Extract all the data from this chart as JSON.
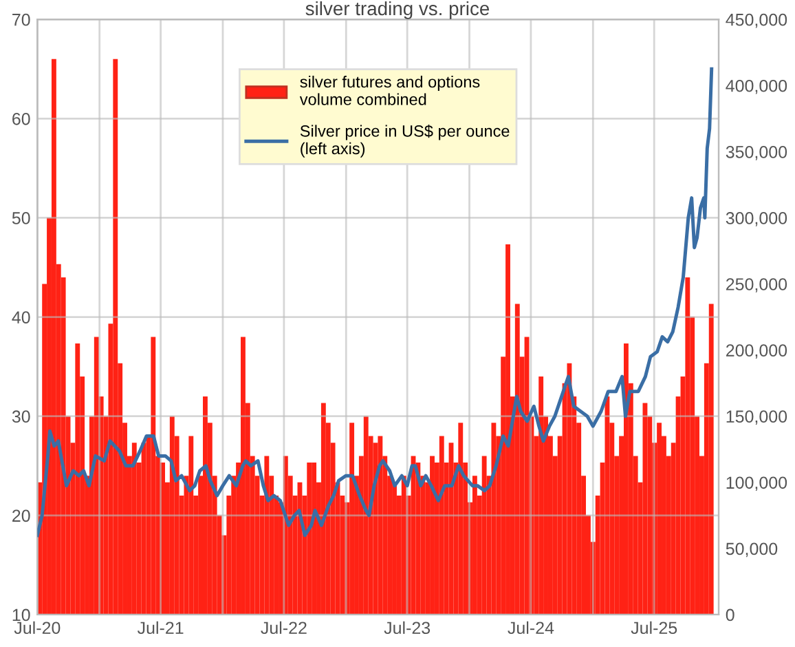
{
  "chart_data": {
    "type": "bar",
    "title": "silver trading vs. price",
    "xlim": [
      "2020-07-01",
      "2026-01-08"
    ],
    "xticks": [
      {
        "value": "2020-07-01",
        "label": "Jul-20"
      },
      {
        "value": "2021-01-01",
        "label": null
      },
      {
        "value": "2021-07-01",
        "label": "Jul-21"
      },
      {
        "value": "2022-01-01",
        "label": null
      },
      {
        "value": "2022-07-01",
        "label": "Jul-22"
      },
      {
        "value": "2023-01-01",
        "label": null
      },
      {
        "value": "2023-07-01",
        "label": "Jul-23"
      },
      {
        "value": "2024-01-01",
        "label": null
      },
      {
        "value": "2024-07-01",
        "label": "Jul-24"
      },
      {
        "value": "2025-01-01",
        "label": null
      },
      {
        "value": "2025-07-01",
        "label": "Jul-25"
      }
    ],
    "ylim": [
      10,
      70
    ],
    "yticks": [
      10,
      20,
      30,
      40,
      50,
      60,
      70
    ],
    "y2lim": [
      0,
      450000
    ],
    "y2ticks": [
      {
        "value": 0,
        "label": "0"
      },
      {
        "value": 50000,
        "label": "50,000"
      },
      {
        "value": 100000,
        "label": "100,000"
      },
      {
        "value": 150000,
        "label": "150,000"
      },
      {
        "value": 200000,
        "label": "200,000"
      },
      {
        "value": 250000,
        "label": "250,000"
      },
      {
        "value": 300000,
        "label": "300,000"
      },
      {
        "value": 350000,
        "label": "350,000"
      },
      {
        "value": 400000,
        "label": "400,000"
      },
      {
        "value": 450000,
        "label": "450,000"
      }
    ],
    "grid": true,
    "legend": "top",
    "series": [
      {
        "name": "silver futures and options volume combined",
        "axis": "y2",
        "color": "#ff2215",
        "x": [
          "2020-07-01",
          "2020-07-15",
          "2020-07-29",
          "2020-08-12",
          "2020-08-26",
          "2020-09-09",
          "2020-09-23",
          "2020-10-07",
          "2020-10-21",
          "2020-11-04",
          "2020-11-18",
          "2020-12-02",
          "2020-12-16",
          "2020-12-30",
          "2021-01-13",
          "2021-01-27",
          "2021-02-10",
          "2021-02-24",
          "2021-03-10",
          "2021-03-24",
          "2021-04-07",
          "2021-04-21",
          "2021-05-05",
          "2021-05-19",
          "2021-06-02",
          "2021-06-16",
          "2021-06-30",
          "2021-07-14",
          "2021-07-28",
          "2021-08-11",
          "2021-08-25",
          "2021-09-08",
          "2021-09-22",
          "2021-10-06",
          "2021-10-20",
          "2021-11-03",
          "2021-11-17",
          "2021-12-01",
          "2021-12-15",
          "2021-12-29",
          "2022-01-12",
          "2022-01-26",
          "2022-02-09",
          "2022-02-23",
          "2022-03-09",
          "2022-03-23",
          "2022-04-06",
          "2022-04-20",
          "2022-05-04",
          "2022-05-18",
          "2022-06-01",
          "2022-06-15",
          "2022-06-29",
          "2022-07-13",
          "2022-07-27",
          "2022-08-10",
          "2022-08-24",
          "2022-09-07",
          "2022-09-21",
          "2022-10-05",
          "2022-10-19",
          "2022-11-02",
          "2022-11-16",
          "2022-11-30",
          "2022-12-14",
          "2022-12-28",
          "2023-01-11",
          "2023-01-25",
          "2023-02-08",
          "2023-02-22",
          "2023-03-08",
          "2023-03-22",
          "2023-04-05",
          "2023-04-19",
          "2023-05-03",
          "2023-05-17",
          "2023-05-31",
          "2023-06-14",
          "2023-06-28",
          "2023-07-12",
          "2023-07-26",
          "2023-08-09",
          "2023-08-23",
          "2023-09-06",
          "2023-09-20",
          "2023-10-04",
          "2023-10-18",
          "2023-11-01",
          "2023-11-15",
          "2023-11-29",
          "2023-12-13",
          "2023-12-27",
          "2024-01-10",
          "2024-01-24",
          "2024-02-07",
          "2024-02-21",
          "2024-03-06",
          "2024-03-20",
          "2024-04-03",
          "2024-04-17",
          "2024-05-01",
          "2024-05-15",
          "2024-05-29",
          "2024-06-12",
          "2024-06-26",
          "2024-07-10",
          "2024-07-24",
          "2024-08-07",
          "2024-08-21",
          "2024-09-04",
          "2024-09-18",
          "2024-10-02",
          "2024-10-16",
          "2024-10-30",
          "2024-11-13",
          "2024-11-27",
          "2024-12-11",
          "2024-12-25",
          "2025-01-08",
          "2025-01-22",
          "2025-02-05",
          "2025-02-19",
          "2025-03-05",
          "2025-03-19",
          "2025-04-02",
          "2025-04-16",
          "2025-04-30",
          "2025-05-14",
          "2025-05-28",
          "2025-06-11",
          "2025-06-25",
          "2025-07-09",
          "2025-07-23",
          "2025-08-06",
          "2025-08-20",
          "2025-09-03",
          "2025-09-17",
          "2025-10-01",
          "2025-10-15",
          "2025-10-29",
          "2025-11-12",
          "2025-11-26",
          "2025-12-10"
        ],
        "values": [
          100000,
          250000,
          300000,
          420000,
          265000,
          255000,
          150000,
          130000,
          205000,
          180000,
          105000,
          150000,
          210000,
          165000,
          150000,
          220000,
          420000,
          190000,
          145000,
          120000,
          130000,
          115000,
          130000,
          135000,
          210000,
          120000,
          115000,
          100000,
          150000,
          135000,
          90000,
          105000,
          135000,
          90000,
          105000,
          165000,
          145000,
          105000,
          75000,
          60000,
          90000,
          105000,
          115000,
          210000,
          160000,
          120000,
          105000,
          90000,
          120000,
          105000,
          90000,
          85000,
          120000,
          105000,
          90000,
          100000,
          90000,
          115000,
          115000,
          100000,
          160000,
          145000,
          130000,
          100000,
          90000,
          85000,
          145000,
          105000,
          120000,
          150000,
          135000,
          130000,
          135000,
          120000,
          105000,
          100000,
          90000,
          105000,
          90000,
          120000,
          115000,
          105000,
          100000,
          120000,
          115000,
          135000,
          115000,
          130000,
          115000,
          145000,
          115000,
          85000,
          105000,
          90000,
          120000,
          105000,
          145000,
          135000,
          195000,
          280000,
          165000,
          235000,
          195000,
          210000,
          150000,
          135000,
          180000,
          150000,
          135000,
          120000,
          135000,
          175000,
          190000,
          165000,
          145000,
          105000,
          75000,
          55000,
          90000,
          115000,
          165000,
          145000,
          120000,
          135000,
          205000,
          175000,
          120000,
          100000,
          160000,
          150000,
          130000,
          145000,
          135000,
          120000,
          130000,
          165000,
          180000,
          255000,
          225000,
          150000,
          120000,
          190000,
          235000
        ]
      },
      {
        "name": "Silver price in US$ per ounce (left axis)",
        "type": "line",
        "axis": "y",
        "color": "#3a6ea5",
        "x": [
          "2020-07-01",
          "2020-07-15",
          "2020-08-01",
          "2020-08-07",
          "2020-08-20",
          "2020-09-01",
          "2020-09-25",
          "2020-10-15",
          "2020-11-01",
          "2020-11-15",
          "2020-12-01",
          "2020-12-20",
          "2021-01-15",
          "2021-02-01",
          "2021-02-15",
          "2021-03-01",
          "2021-03-20",
          "2021-04-10",
          "2021-05-01",
          "2021-05-20",
          "2021-06-10",
          "2021-06-25",
          "2021-07-15",
          "2021-08-01",
          "2021-08-15",
          "2021-09-01",
          "2021-09-25",
          "2021-10-10",
          "2021-10-25",
          "2021-11-12",
          "2021-11-25",
          "2021-12-15",
          "2022-01-01",
          "2022-01-20",
          "2022-02-10",
          "2022-03-01",
          "2022-03-10",
          "2022-03-25",
          "2022-04-15",
          "2022-05-01",
          "2022-05-15",
          "2022-06-01",
          "2022-06-20",
          "2022-07-15",
          "2022-08-01",
          "2022-08-15",
          "2022-09-01",
          "2022-09-20",
          "2022-10-01",
          "2022-10-20",
          "2022-11-10",
          "2022-11-25",
          "2022-12-10",
          "2022-12-31",
          "2023-01-20",
          "2023-02-10",
          "2023-03-01",
          "2023-03-10",
          "2023-03-25",
          "2023-04-10",
          "2023-04-20",
          "2023-05-10",
          "2023-05-25",
          "2023-06-15",
          "2023-07-01",
          "2023-07-15",
          "2023-07-25",
          "2023-08-10",
          "2023-08-25",
          "2023-09-10",
          "2023-10-01",
          "2023-10-20",
          "2023-11-10",
          "2023-11-30",
          "2023-12-15",
          "2024-01-10",
          "2024-01-25",
          "2024-02-15",
          "2024-03-01",
          "2024-03-20",
          "2024-04-10",
          "2024-04-25",
          "2024-05-20",
          "2024-06-01",
          "2024-06-20",
          "2024-07-10",
          "2024-07-25",
          "2024-08-07",
          "2024-08-25",
          "2024-09-10",
          "2024-09-25",
          "2024-10-20",
          "2024-11-05",
          "2024-11-25",
          "2024-12-15",
          "2025-01-01",
          "2025-01-25",
          "2025-02-15",
          "2025-03-10",
          "2025-03-28",
          "2025-04-07",
          "2025-04-20",
          "2025-05-15",
          "2025-06-05",
          "2025-06-20",
          "2025-07-10",
          "2025-07-25",
          "2025-08-10",
          "2025-08-25",
          "2025-09-10",
          "2025-09-25",
          "2025-10-10",
          "2025-10-20",
          "2025-10-28",
          "2025-11-05",
          "2025-11-15",
          "2025-11-25",
          "2025-11-28",
          "2025-12-05",
          "2025-12-12",
          "2025-12-18"
        ],
        "values": [
          18,
          20,
          26,
          28.5,
          27,
          27.5,
          23,
          24.5,
          24,
          24.5,
          23,
          26,
          25.5,
          27.5,
          27,
          26.5,
          25,
          25,
          26.5,
          28,
          28,
          26,
          26,
          25.5,
          23.5,
          24,
          22.5,
          23,
          24.5,
          25,
          23.5,
          22,
          23,
          24,
          23,
          25,
          25.5,
          25,
          25.5,
          23,
          21.5,
          22,
          21.5,
          19,
          20,
          20.5,
          18,
          19,
          20.5,
          19,
          21,
          22,
          23.5,
          24,
          24,
          22,
          20.5,
          20,
          23,
          25,
          25.5,
          24.5,
          23,
          24,
          23,
          25,
          25,
          23,
          24,
          23,
          21.5,
          23,
          23,
          25,
          24,
          23,
          23,
          22.5,
          23,
          25,
          28,
          27,
          32,
          30.5,
          29.5,
          31,
          29,
          27.5,
          29,
          30,
          31.5,
          34,
          31,
          30.5,
          30,
          29,
          30.5,
          32.5,
          32.5,
          34,
          30,
          32.5,
          32.5,
          34,
          36,
          36.5,
          38,
          37.5,
          38.5,
          41,
          44,
          50,
          52,
          47,
          48,
          51,
          52,
          50,
          57,
          59,
          65
        ]
      }
    ]
  }
}
